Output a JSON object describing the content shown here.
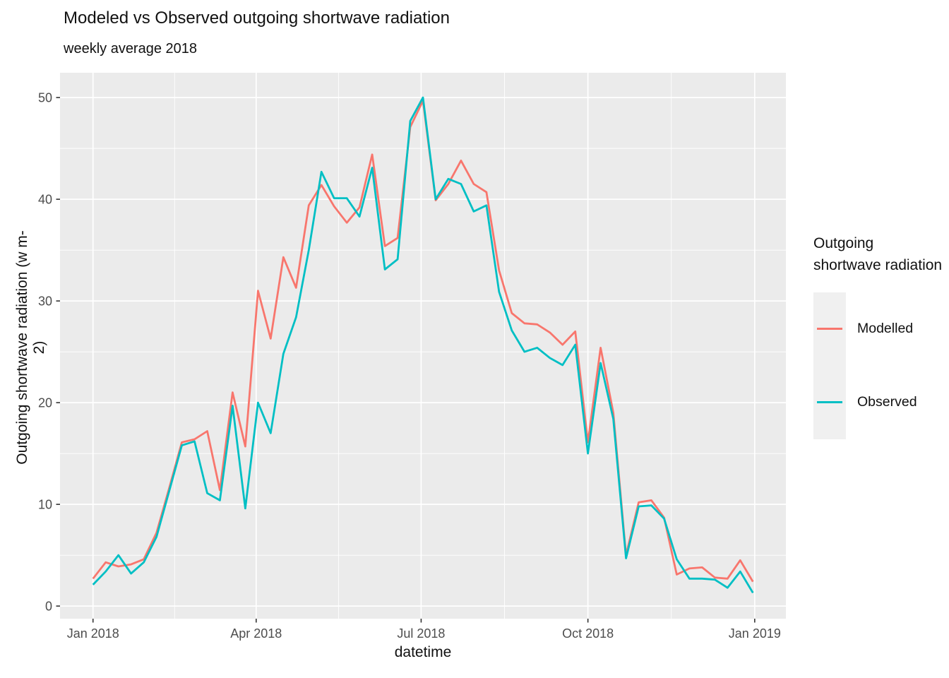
{
  "chart_data": {
    "type": "line",
    "title": "Modeled vs Observed outgoing shortwave radiation",
    "subtitle": "weekly average 2018",
    "xlabel": "datetime",
    "ylabel": "Outgoing shortwave radiation (w m-2)",
    "legend_title": "Outgoing shortwave radiation",
    "grid": "on",
    "legend_position": "right",
    "x": [
      "2018-01-01",
      "2018-01-08",
      "2018-01-15",
      "2018-01-22",
      "2018-01-29",
      "2018-02-05",
      "2018-02-12",
      "2018-02-19",
      "2018-02-26",
      "2018-03-05",
      "2018-03-12",
      "2018-03-19",
      "2018-03-26",
      "2018-04-02",
      "2018-04-09",
      "2018-04-16",
      "2018-04-23",
      "2018-04-30",
      "2018-05-07",
      "2018-05-14",
      "2018-05-21",
      "2018-05-28",
      "2018-06-04",
      "2018-06-11",
      "2018-06-18",
      "2018-06-25",
      "2018-07-02",
      "2018-07-09",
      "2018-07-16",
      "2018-07-23",
      "2018-07-30",
      "2018-08-06",
      "2018-08-13",
      "2018-08-20",
      "2018-08-27",
      "2018-09-03",
      "2018-09-10",
      "2018-09-17",
      "2018-09-24",
      "2018-10-01",
      "2018-10-08",
      "2018-10-15",
      "2018-10-22",
      "2018-10-29",
      "2018-11-05",
      "2018-11-12",
      "2018-11-19",
      "2018-11-26",
      "2018-12-03",
      "2018-12-10",
      "2018-12-17",
      "2018-12-24",
      "2018-12-31"
    ],
    "series": [
      {
        "name": "Modelled",
        "color": "#F8766D",
        "values": [
          2.7,
          4.3,
          3.9,
          4.1,
          4.6,
          7.2,
          11.6,
          16.1,
          16.4,
          17.2,
          11.4,
          21.0,
          15.7,
          31.0,
          26.3,
          34.3,
          31.3,
          39.4,
          41.4,
          39.3,
          37.7,
          39.2,
          44.4,
          35.4,
          36.2,
          47.1,
          49.7,
          39.9,
          41.5,
          43.8,
          41.5,
          40.7,
          33.0,
          28.8,
          27.8,
          27.7,
          26.9,
          25.7,
          27.0,
          16.1,
          25.4,
          19.0,
          5.0,
          10.2,
          10.4,
          8.7,
          3.1,
          3.7,
          3.8,
          2.8,
          2.7,
          4.5,
          2.4
        ]
      },
      {
        "name": "Observed",
        "color": "#00BFC4",
        "values": [
          2.1,
          3.4,
          5.0,
          3.2,
          4.3,
          6.8,
          11.3,
          15.8,
          16.2,
          11.1,
          10.4,
          19.7,
          9.6,
          20.0,
          17.0,
          24.8,
          28.4,
          35.0,
          42.7,
          40.1,
          40.1,
          38.3,
          43.1,
          33.1,
          34.1,
          47.7,
          50.0,
          40.0,
          42.0,
          41.5,
          38.8,
          39.4,
          30.9,
          27.1,
          25.0,
          25.4,
          24.4,
          23.7,
          25.7,
          15.0,
          23.9,
          18.4,
          4.7,
          9.8,
          9.9,
          8.6,
          4.6,
          2.7,
          2.7,
          2.6,
          1.8,
          3.4,
          1.3
        ]
      }
    ],
    "x_ticks": [
      {
        "label": "Jan 2018",
        "day": 0
      },
      {
        "label": "Apr 2018",
        "day": 90
      },
      {
        "label": "Jul 2018",
        "day": 181
      },
      {
        "label": "Oct 2018",
        "day": 273
      },
      {
        "label": "Jan 2019",
        "day": 365
      }
    ],
    "x_minor_days": [
      45,
      135.5,
      227,
      319
    ],
    "y_ticks": [
      0,
      10,
      20,
      30,
      40,
      50
    ],
    "y_minor": [
      5,
      15,
      25,
      35,
      45
    ],
    "ylim": [
      -1.24,
      52.44
    ],
    "xlim_days": [
      -18.2,
      382.2
    ],
    "colors": {
      "panel_bg": "#EBEBEB",
      "grid": "#FFFFFF",
      "tick_label": "#4D4D4D",
      "tick_mark": "#333333",
      "legend_key_bg": "#F0F0F0",
      "text": "#111111"
    }
  }
}
